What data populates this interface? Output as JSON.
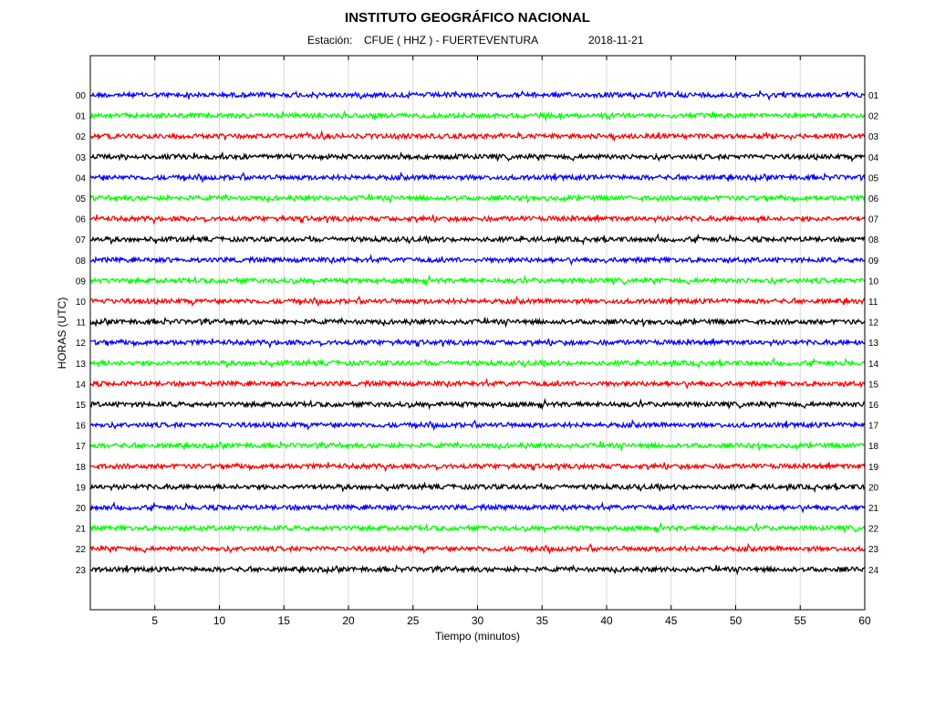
{
  "header": {
    "title": "INSTITUTO GEOGRÁFICO NACIONAL",
    "station_label": "Estación:",
    "station_value": "CFUE ( HHZ ) - FUERTEVENTURA",
    "date": "2018-11-21"
  },
  "chart_data": {
    "type": "line",
    "title": "INSTITUTO GEOGRÁFICO NACIONAL",
    "subtitle": "Estación:  CFUE ( HHZ ) - FUERTEVENTURA   2018-11-21",
    "xlabel": "Tiempo (minutos)",
    "ylabel": "HORAS (UTC)",
    "xlim": [
      0,
      60
    ],
    "x_ticks": [
      "5",
      "10",
      "15",
      "20",
      "25",
      "30",
      "35",
      "40",
      "45",
      "50",
      "55",
      "60"
    ],
    "grid": true,
    "left_hour_labels": [
      "00",
      "01",
      "02",
      "03",
      "04",
      "05",
      "06",
      "07",
      "08",
      "09",
      "10",
      "11",
      "12",
      "13",
      "14",
      "15",
      "16",
      "17",
      "18",
      "19",
      "20",
      "21",
      "22",
      "23"
    ],
    "right_hour_labels": [
      "01",
      "02",
      "03",
      "04",
      "05",
      "06",
      "07",
      "08",
      "09",
      "10",
      "11",
      "12",
      "13",
      "14",
      "15",
      "16",
      "17",
      "18",
      "19",
      "20",
      "21",
      "22",
      "23",
      "24"
    ],
    "trace_colors": [
      "#0000ff",
      "#00ff00",
      "#ff0000",
      "#000000"
    ],
    "traces": [
      {
        "hour": "00",
        "color": "#0000ff"
      },
      {
        "hour": "01",
        "color": "#00ff00"
      },
      {
        "hour": "02",
        "color": "#ff0000"
      },
      {
        "hour": "03",
        "color": "#000000"
      },
      {
        "hour": "04",
        "color": "#0000ff"
      },
      {
        "hour": "05",
        "color": "#00ff00"
      },
      {
        "hour": "06",
        "color": "#ff0000"
      },
      {
        "hour": "07",
        "color": "#000000"
      },
      {
        "hour": "08",
        "color": "#0000ff"
      },
      {
        "hour": "09",
        "color": "#00ff00"
      },
      {
        "hour": "10",
        "color": "#ff0000"
      },
      {
        "hour": "11",
        "color": "#000000"
      },
      {
        "hour": "12",
        "color": "#0000ff"
      },
      {
        "hour": "13",
        "color": "#00ff00"
      },
      {
        "hour": "14",
        "color": "#ff0000"
      },
      {
        "hour": "15",
        "color": "#000000"
      },
      {
        "hour": "16",
        "color": "#0000ff"
      },
      {
        "hour": "17",
        "color": "#00ff00"
      },
      {
        "hour": "18",
        "color": "#ff0000"
      },
      {
        "hour": "19",
        "color": "#000000"
      },
      {
        "hour": "20",
        "color": "#0000ff"
      },
      {
        "hour": "21",
        "color": "#00ff00"
      },
      {
        "hour": "22",
        "color": "#ff0000"
      },
      {
        "hour": "23",
        "color": "#000000"
      }
    ]
  }
}
